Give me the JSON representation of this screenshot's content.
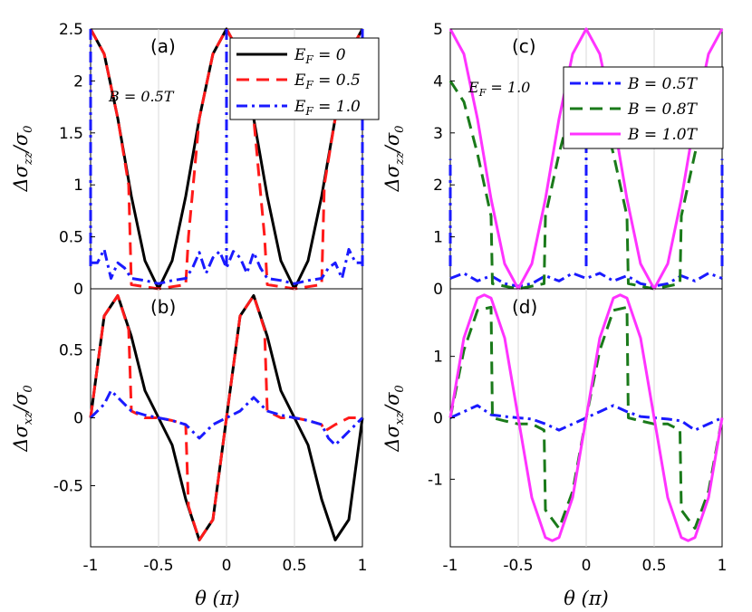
{
  "x_label": "θ (π)",
  "colors": {
    "black": "#000000",
    "red": "#ff1a1a",
    "blue": "#1a1aff",
    "green": "#1a7a1a",
    "magenta": "#ff33ff"
  },
  "chart_data": [
    {
      "id": "a",
      "type": "line",
      "panel_label": "(a)",
      "ylabel": "Δσ_zz/σ_0",
      "xlabel": "θ (π)",
      "xlim": [
        -1,
        1
      ],
      "ylim": [
        0,
        2.5
      ],
      "y_ticks": [
        "0",
        "0.5",
        "1",
        "1.5",
        "2",
        "2.5"
      ],
      "x_ticks": [],
      "annotation": "B = 0.5T",
      "legend": [
        "E_F = 0",
        "E_F = 0.5",
        "E_F = 1.0"
      ],
      "series": [
        {
          "name": "E_F = 0",
          "style": "solid",
          "color": "#000000",
          "x": [
            -1,
            -0.9,
            -0.8,
            -0.7,
            -0.6,
            -0.5,
            -0.4,
            -0.3,
            -0.2,
            -0.1,
            0,
            0.1,
            0.2,
            0.3,
            0.4,
            0.5,
            0.6,
            0.7,
            0.8,
            0.9,
            1
          ],
          "y": [
            2.5,
            2.26,
            1.64,
            0.89,
            0.27,
            0,
            0.27,
            0.89,
            1.64,
            2.26,
            2.5,
            2.26,
            1.64,
            0.89,
            0.27,
            0,
            0.27,
            0.89,
            1.64,
            2.26,
            2.5
          ]
        },
        {
          "name": "E_F = 0.5",
          "style": "dashed",
          "color": "#ff1a1a",
          "x": [
            -1,
            -0.9,
            -0.8,
            -0.72,
            -0.7,
            -0.6,
            -0.5,
            -0.4,
            -0.3,
            -0.28,
            -0.2,
            -0.1,
            0,
            0.1,
            0.2,
            0.28,
            0.3,
            0.4,
            0.5,
            0.6,
            0.7,
            0.72,
            0.8,
            0.9,
            1
          ],
          "y": [
            2.5,
            2.26,
            1.64,
            1.0,
            0.04,
            0.02,
            0,
            0.02,
            0.04,
            0.5,
            1.64,
            2.26,
            2.5,
            2.26,
            1.64,
            0.5,
            0.04,
            0.02,
            0,
            0.02,
            0.04,
            1.0,
            1.64,
            2.26,
            2.5
          ]
        },
        {
          "name": "E_F = 1.0",
          "style": "dashdot",
          "color": "#1a1aff",
          "x": [
            -1,
            -0.95,
            -0.9,
            -0.85,
            -0.8,
            -0.75,
            -0.7,
            -0.6,
            -0.5,
            -0.4,
            -0.3,
            -0.25,
            -0.2,
            -0.15,
            -0.1,
            -0.05,
            0,
            0.05,
            0.1,
            0.15,
            0.2,
            0.25,
            0.3,
            0.4,
            0.5,
            0.6,
            0.7,
            0.75,
            0.8,
            0.85,
            0.9,
            0.95,
            1
          ],
          "y": [
            0.25,
            0.25,
            0.38,
            0.1,
            0.25,
            0.2,
            0.1,
            0.08,
            0.05,
            0.08,
            0.1,
            0.2,
            0.35,
            0.15,
            0.3,
            0.36,
            0.2,
            0.36,
            0.3,
            0.15,
            0.35,
            0.2,
            0.1,
            0.08,
            0.05,
            0.08,
            0.1,
            0.2,
            0.25,
            0.1,
            0.38,
            0.25,
            0.25
          ]
        }
      ],
      "spikes": [
        {
          "x": -1,
          "y": 2.5,
          "color": "#1a1aff"
        },
        {
          "x": 0,
          "y": 2.5,
          "color": "#1a1aff"
        },
        {
          "x": 1,
          "y": 2.5,
          "color": "#1a1aff"
        }
      ]
    },
    {
      "id": "b",
      "type": "line",
      "panel_label": "(b)",
      "ylabel": "Δσ_xz/σ_0",
      "xlabel": "θ (π)",
      "xlim": [
        -1,
        1
      ],
      "ylim": [
        -0.95,
        0.95
      ],
      "y_ticks": [
        "-0.5",
        "0",
        "0.5"
      ],
      "y_tick_values": [
        -0.5,
        0,
        0.5
      ],
      "x_ticks": [
        "-1",
        "-0.5",
        "0",
        "0.5",
        "1"
      ],
      "x_tick_values": [
        -1,
        -0.5,
        0,
        0.5,
        1
      ],
      "series": [
        {
          "name": "E_F = 0",
          "style": "solid",
          "color": "#000000",
          "x": [
            -1,
            -0.9,
            -0.8,
            -0.7,
            -0.6,
            -0.5,
            -0.4,
            -0.3,
            -0.2,
            -0.1,
            0,
            0.1,
            0.2,
            0.3,
            0.4,
            0.5,
            0.6,
            0.7,
            0.8,
            0.9,
            1
          ],
          "y": [
            0,
            0.75,
            0.9,
            0.6,
            0.2,
            0,
            -0.2,
            -0.6,
            -0.9,
            -0.75,
            0,
            0.75,
            0.9,
            0.6,
            0.2,
            0,
            -0.2,
            -0.6,
            -0.9,
            -0.75,
            0
          ]
        },
        {
          "name": "E_F = 0.5",
          "style": "dashed",
          "color": "#ff1a1a",
          "x": [
            -1,
            -0.9,
            -0.8,
            -0.72,
            -0.7,
            -0.6,
            -0.5,
            -0.4,
            -0.3,
            -0.28,
            -0.2,
            -0.1,
            0,
            0.1,
            0.2,
            0.28,
            0.3,
            0.4,
            0.5,
            0.6,
            0.7,
            0.72,
            0.8,
            0.9,
            1
          ],
          "y": [
            0,
            0.75,
            0.9,
            0.65,
            0.05,
            0,
            0,
            -0.02,
            -0.05,
            -0.65,
            -0.9,
            -0.75,
            0,
            0.75,
            0.9,
            0.65,
            0.05,
            0,
            0,
            -0.02,
            -0.05,
            -0.1,
            -0.05,
            0,
            0
          ]
        },
        {
          "name": "E_F = 1.0",
          "style": "dashdot",
          "color": "#1a1aff",
          "x": [
            -1,
            -0.9,
            -0.85,
            -0.8,
            -0.7,
            -0.6,
            -0.5,
            -0.4,
            -0.3,
            -0.25,
            -0.2,
            -0.1,
            0,
            0.1,
            0.2,
            0.25,
            0.3,
            0.4,
            0.5,
            0.6,
            0.7,
            0.75,
            0.8,
            0.9,
            1
          ],
          "y": [
            0,
            0.1,
            0.2,
            0.15,
            0.05,
            0.02,
            0,
            -0.02,
            -0.05,
            -0.1,
            -0.15,
            -0.05,
            0,
            0.05,
            0.15,
            0.1,
            0.05,
            0.02,
            0,
            -0.02,
            -0.05,
            -0.15,
            -0.2,
            -0.1,
            0
          ]
        }
      ]
    },
    {
      "id": "c",
      "type": "line",
      "panel_label": "(c)",
      "ylabel": "Δσ_zz/σ_0",
      "xlabel": "θ (π)",
      "xlim": [
        -1,
        1
      ],
      "ylim": [
        0,
        5
      ],
      "y_ticks": [
        "0",
        "1",
        "2",
        "3",
        "4",
        "5"
      ],
      "x_ticks": [],
      "annotation": "E_F = 1.0",
      "legend": [
        "B = 0.5T",
        "B = 0.8T",
        "B = 1.0T"
      ],
      "series": [
        {
          "name": "B = 0.5T",
          "style": "dashdot",
          "color": "#1a1aff",
          "x": [
            -1,
            -0.95,
            -0.9,
            -0.8,
            -0.7,
            -0.6,
            -0.5,
            -0.4,
            -0.3,
            -0.2,
            -0.1,
            0,
            0.1,
            0.2,
            0.3,
            0.4,
            0.5,
            0.6,
            0.7,
            0.8,
            0.9,
            0.95,
            1
          ],
          "y": [
            0.2,
            0.25,
            0.3,
            0.15,
            0.25,
            0.1,
            0.05,
            0.1,
            0.25,
            0.15,
            0.3,
            0.2,
            0.3,
            0.15,
            0.25,
            0.1,
            0.05,
            0.1,
            0.25,
            0.15,
            0.3,
            0.25,
            0.2
          ]
        },
        {
          "name": "B = 0.8T",
          "style": "dashed",
          "color": "#1a7a1a",
          "x": [
            -1,
            -0.9,
            -0.8,
            -0.7,
            -0.69,
            -0.6,
            -0.5,
            -0.4,
            -0.31,
            -0.3,
            -0.2,
            -0.1,
            0,
            0.1,
            0.2,
            0.3,
            0.31,
            0.4,
            0.5,
            0.6,
            0.69,
            0.7,
            0.8,
            0.9,
            1
          ],
          "y": [
            4.0,
            3.6,
            2.6,
            1.4,
            0.1,
            0.05,
            0,
            0.05,
            0.1,
            1.4,
            2.6,
            3.6,
            4.0,
            3.6,
            2.6,
            1.4,
            0.1,
            0.05,
            0,
            0.05,
            0.1,
            1.4,
            2.6,
            3.6,
            4.0
          ]
        },
        {
          "name": "B = 1.0T",
          "style": "solid",
          "color": "#ff33ff",
          "x": [
            -1,
            -0.9,
            -0.8,
            -0.7,
            -0.6,
            -0.5,
            -0.4,
            -0.3,
            -0.2,
            -0.1,
            0,
            0.1,
            0.2,
            0.3,
            0.4,
            0.5,
            0.6,
            0.7,
            0.8,
            0.9,
            1
          ],
          "y": [
            5,
            4.52,
            3.27,
            1.73,
            0.48,
            0,
            0.48,
            1.73,
            3.27,
            4.52,
            5,
            4.52,
            3.27,
            1.73,
            0.48,
            0,
            0.48,
            1.73,
            3.27,
            4.52,
            5
          ]
        }
      ],
      "spikes": [
        {
          "x": -1,
          "y": 2.5,
          "color": "#1a1aff"
        },
        {
          "x": 0,
          "y": 3.7,
          "color": "#1a1aff"
        },
        {
          "x": 1,
          "y": 2.5,
          "color": "#1a1aff"
        }
      ]
    },
    {
      "id": "d",
      "type": "line",
      "panel_label": "(d)",
      "ylabel": "Δσ_xz/σ_0",
      "xlabel": "θ (π)",
      "xlim": [
        -1,
        1
      ],
      "ylim": [
        -2.1,
        2.1
      ],
      "y_ticks": [
        "-1",
        "0",
        "1"
      ],
      "y_tick_values": [
        -1,
        0,
        1
      ],
      "x_ticks": [
        "-1",
        "-0.5",
        "0",
        "0.5",
        "1"
      ],
      "x_tick_values": [
        -1,
        -0.5,
        0,
        0.5,
        1
      ],
      "series": [
        {
          "name": "B = 0.5T",
          "style": "dashdot",
          "color": "#1a1aff",
          "x": [
            -1,
            -0.9,
            -0.8,
            -0.7,
            -0.6,
            -0.5,
            -0.4,
            -0.3,
            -0.2,
            -0.1,
            0,
            0.1,
            0.2,
            0.3,
            0.4,
            0.5,
            0.6,
            0.7,
            0.8,
            0.9,
            1
          ],
          "y": [
            0,
            0.1,
            0.2,
            0.05,
            0.02,
            0,
            -0.02,
            -0.1,
            -0.2,
            -0.1,
            0,
            0.1,
            0.2,
            0.1,
            0.02,
            0,
            -0.02,
            -0.05,
            -0.2,
            -0.1,
            0
          ]
        },
        {
          "name": "B = 0.8T",
          "style": "dashed",
          "color": "#1a7a1a",
          "x": [
            -1,
            -0.9,
            -0.8,
            -0.7,
            -0.69,
            -0.6,
            -0.5,
            -0.4,
            -0.31,
            -0.3,
            -0.2,
            -0.1,
            0,
            0.1,
            0.2,
            0.3,
            0.31,
            0.4,
            0.5,
            0.6,
            0.69,
            0.7,
            0.8,
            0.9,
            1
          ],
          "y": [
            0,
            1.1,
            1.75,
            1.8,
            0.0,
            -0.05,
            -0.1,
            -0.1,
            -0.2,
            -1.5,
            -1.8,
            -1.2,
            0,
            1.1,
            1.75,
            1.8,
            0.0,
            -0.05,
            -0.1,
            -0.1,
            -0.2,
            -1.5,
            -1.8,
            -1.2,
            0
          ]
        },
        {
          "name": "B = 1.0T",
          "style": "solid",
          "color": "#ff33ff",
          "x": [
            -1,
            -0.9,
            -0.8,
            -0.75,
            -0.7,
            -0.6,
            -0.5,
            -0.4,
            -0.3,
            -0.25,
            -0.2,
            -0.1,
            0,
            0.1,
            0.2,
            0.25,
            0.3,
            0.4,
            0.5,
            0.6,
            0.7,
            0.75,
            0.8,
            0.9,
            1
          ],
          "y": [
            0,
            1.3,
            1.95,
            2.0,
            1.95,
            1.3,
            0,
            -1.3,
            -1.95,
            -2.0,
            -1.95,
            -1.3,
            0,
            1.3,
            1.95,
            2.0,
            1.95,
            1.3,
            0,
            -1.3,
            -1.95,
            -2.0,
            -1.95,
            -1.3,
            0
          ]
        }
      ]
    }
  ]
}
